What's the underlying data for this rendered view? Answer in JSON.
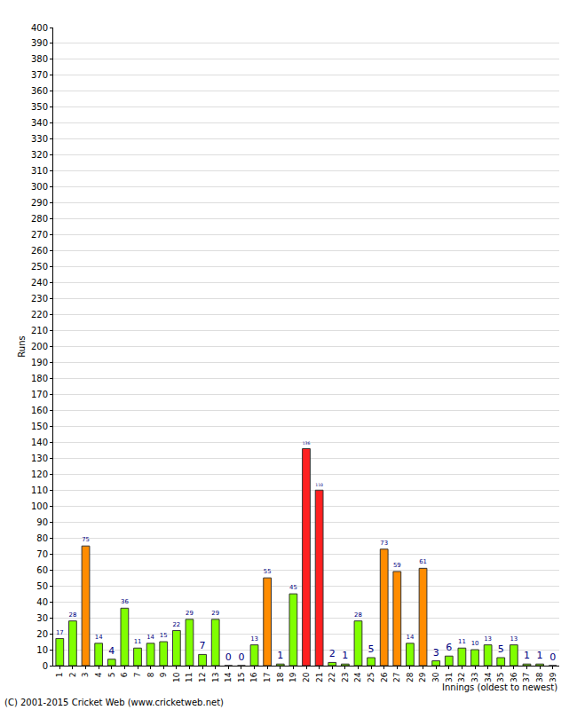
{
  "chart_data": {
    "type": "bar",
    "x_label": "Innings (oldest to newest)",
    "y_label": "Runs",
    "annotations": [
      "(C) 2001-2015 Cricket Web (www.cricketweb.net)"
    ],
    "categories": [
      "1",
      "2",
      "3",
      "4",
      "5",
      "6",
      "7",
      "8",
      "9",
      "10",
      "11",
      "12",
      "13",
      "14",
      "15",
      "16",
      "17",
      "18",
      "19",
      "20",
      "21",
      "22",
      "23",
      "24",
      "25",
      "26",
      "27",
      "28",
      "29",
      "30",
      "31",
      "32",
      "33",
      "34",
      "35",
      "36",
      "37",
      "38",
      "39"
    ],
    "values": [
      17,
      28,
      75,
      14,
      4,
      36,
      11,
      14,
      15,
      22,
      29,
      7,
      29,
      0,
      0,
      13,
      55,
      1,
      45,
      136,
      110,
      2,
      1,
      28,
      5,
      73,
      59,
      14,
      61,
      3,
      6,
      11,
      10,
      13,
      5,
      13,
      1,
      1,
      0
    ],
    "colors": [
      "#80ff00",
      "#80ff00",
      "#ff8c00",
      "#80ff00",
      "#80ff00",
      "#80ff00",
      "#80ff00",
      "#80ff00",
      "#80ff00",
      "#80ff00",
      "#80ff00",
      "#80ff00",
      "#80ff00",
      "#80ff00",
      "#80ff00",
      "#80ff00",
      "#ff8c00",
      "#80ff00",
      "#80ff00",
      "#ff2020",
      "#ff2020",
      "#80ff00",
      "#80ff00",
      "#80ff00",
      "#80ff00",
      "#ff8c00",
      "#ff8c00",
      "#80ff00",
      "#ff8c00",
      "#80ff00",
      "#80ff00",
      "#80ff00",
      "#80ff00",
      "#80ff00",
      "#80ff00",
      "#80ff00",
      "#80ff00",
      "#80ff00",
      "#80ff00"
    ],
    "ylim": [
      0,
      400
    ],
    "yticks": [
      0,
      10,
      20,
      30,
      40,
      50,
      60,
      70,
      80,
      90,
      100,
      110,
      120,
      130,
      140,
      150,
      160,
      170,
      180,
      190,
      200,
      210,
      220,
      230,
      240,
      250,
      260,
      270,
      280,
      290,
      300,
      310,
      320,
      330,
      340,
      350,
      360,
      370,
      380,
      390,
      400
    ],
    "grid": true,
    "data_labels": true
  }
}
